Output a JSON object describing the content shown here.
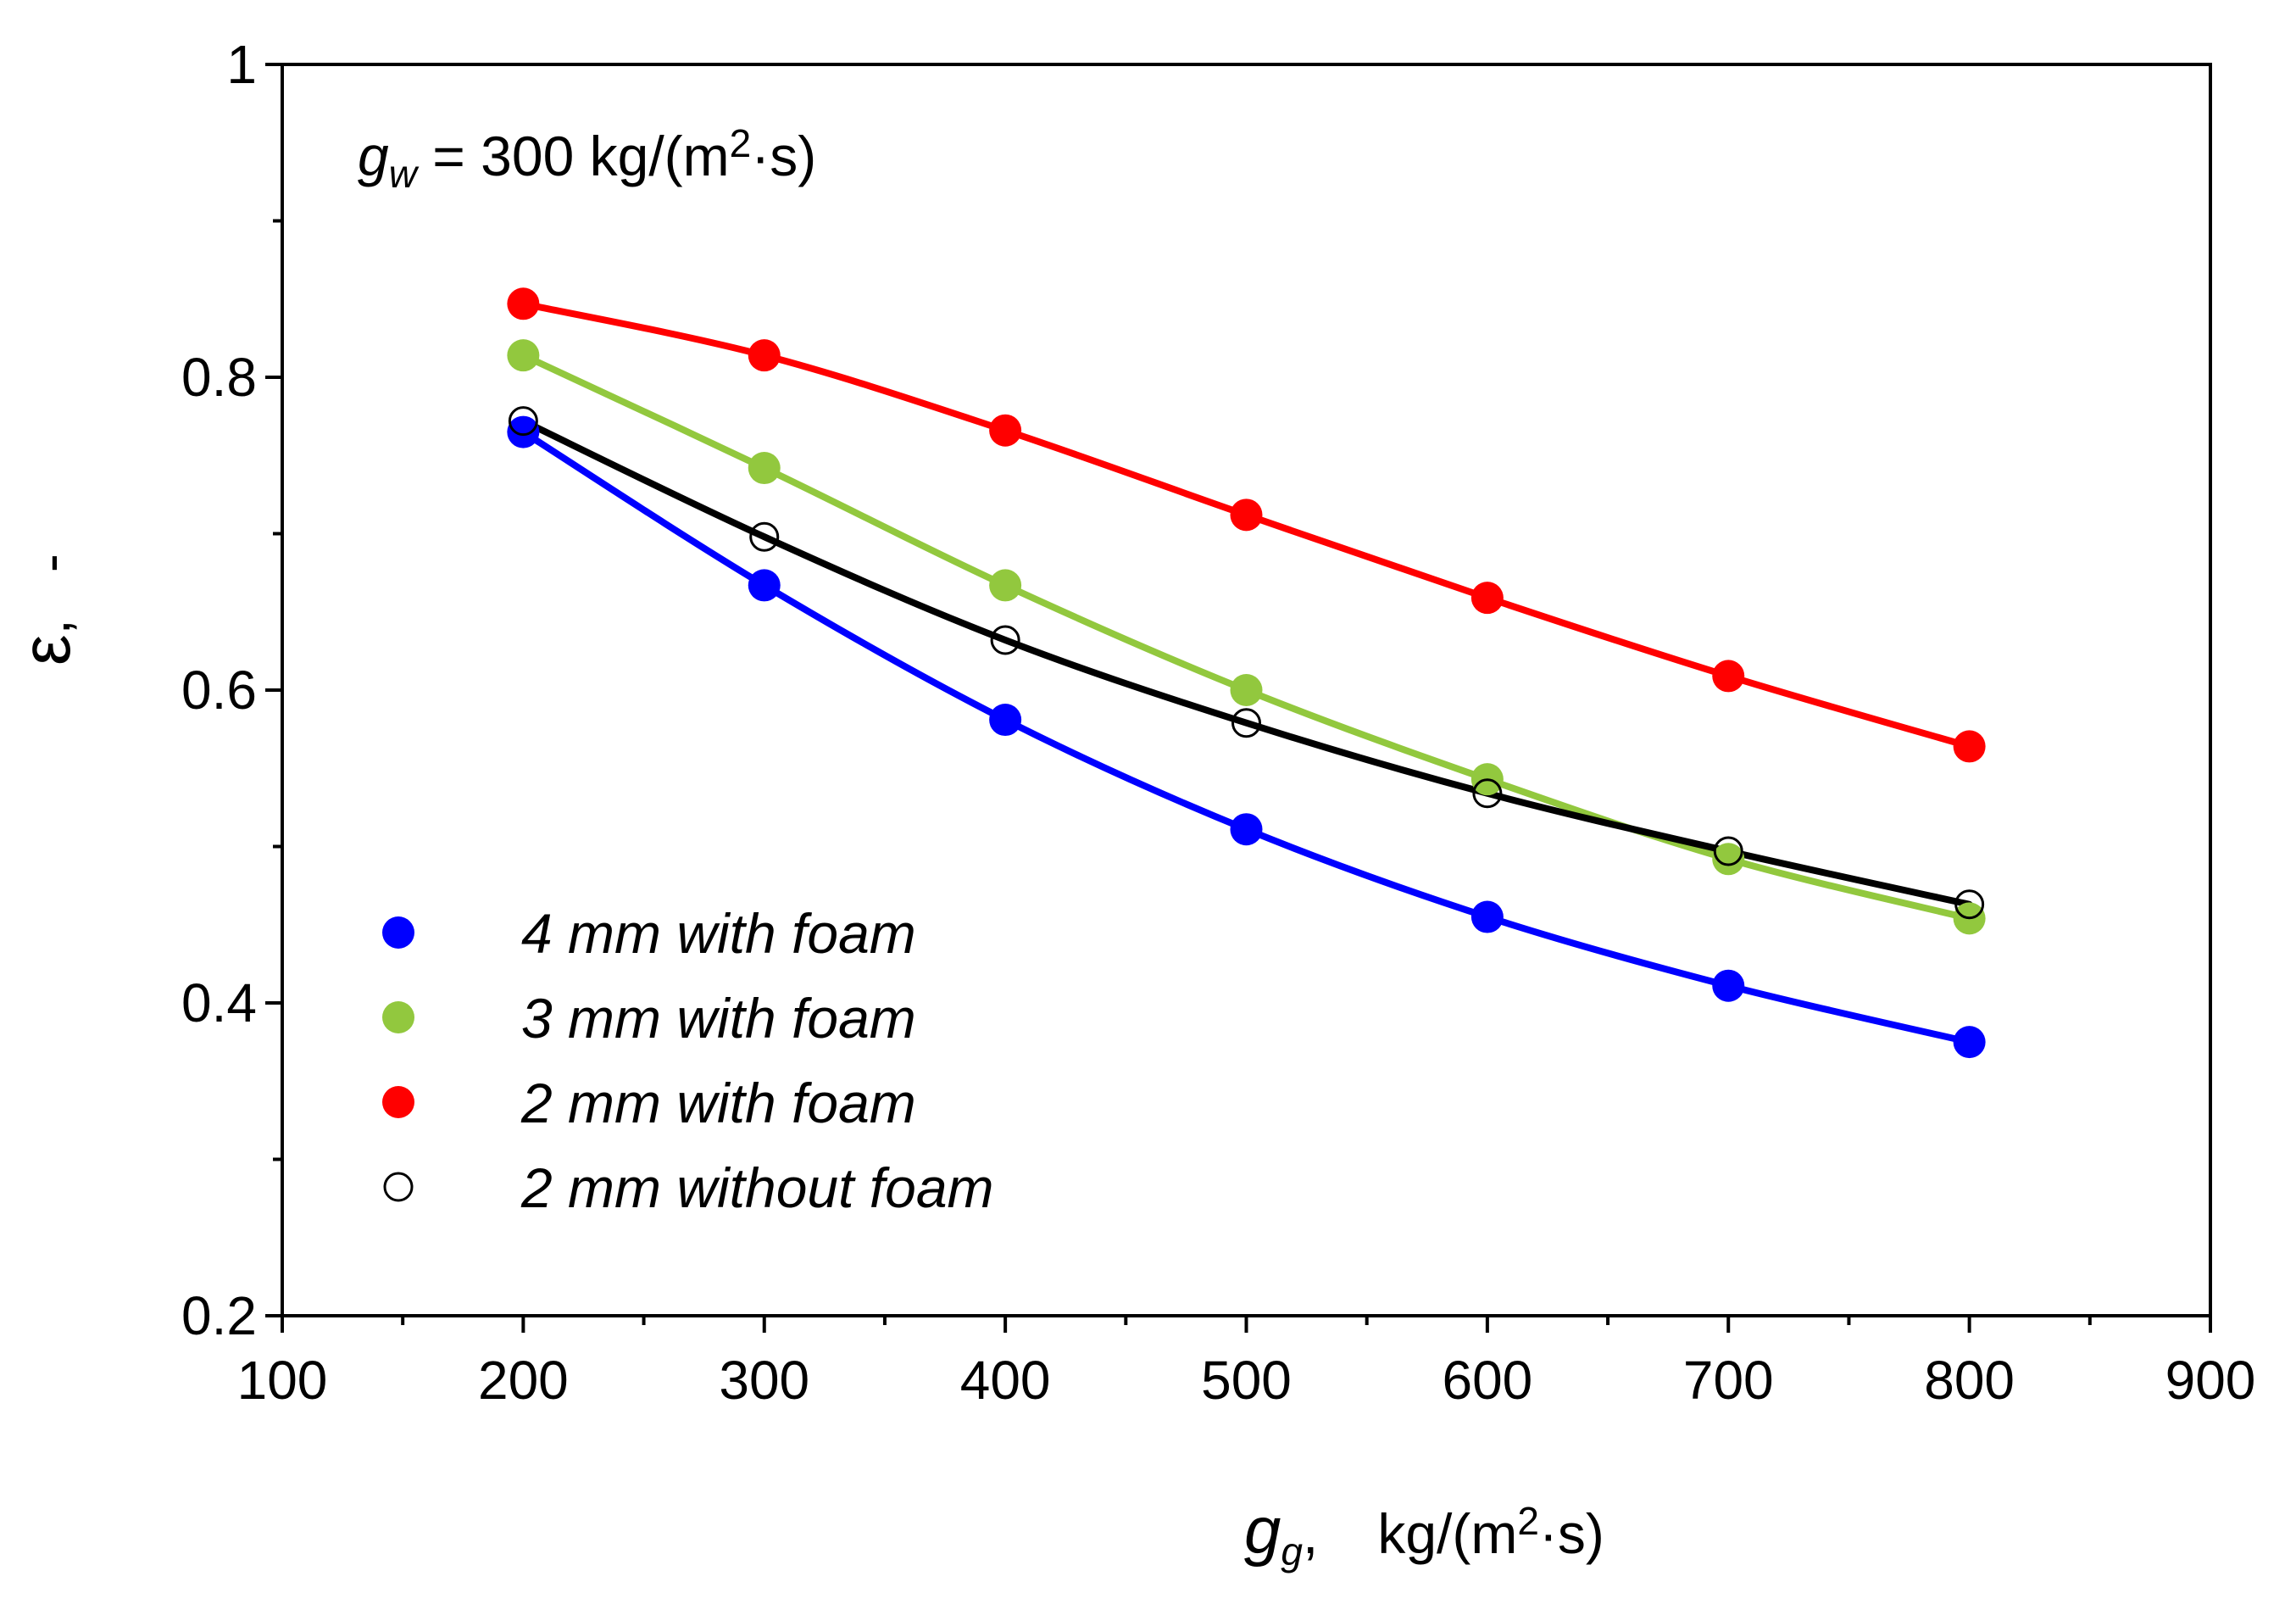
{
  "chart_data": {
    "type": "line",
    "title": "",
    "annotation": {
      "symbol": "g",
      "subscript": "w",
      "text": " = 300 kg/(m",
      "superscript": "2",
      "text_end": "·s)"
    },
    "xlabel": {
      "symbol": "g",
      "subscript": "g",
      "separator": ",",
      "units": "kg/(m",
      "superscript": "2",
      "units_end": "·s)"
    },
    "ylabel": {
      "symbol": "ε",
      "separator": ",",
      "units": "-"
    },
    "xlim": [
      100,
      900
    ],
    "ylim": [
      0.2,
      1.0
    ],
    "xticks": [
      100,
      200,
      300,
      400,
      500,
      600,
      700,
      800,
      900
    ],
    "xtick_labels": [
      "100",
      "200",
      "300",
      "400",
      "500",
      "600",
      "700",
      "800",
      "900"
    ],
    "yticks": [
      0.2,
      0.4,
      0.6,
      0.8,
      1.0
    ],
    "ytick_labels": [
      "0.2",
      "0.4",
      "0.6",
      "0.8",
      "1"
    ],
    "grid": false,
    "legend_position": "bottom-left",
    "x": [
      200,
      300,
      400,
      500,
      600,
      700,
      800
    ],
    "series": [
      {
        "name": "4 mm with foam",
        "color": "#0000ff",
        "marker": "filled-circle",
        "values": [
          0.765,
          0.667,
          0.581,
          0.511,
          0.455,
          0.411,
          0.375
        ]
      },
      {
        "name": "3 mm with foam",
        "color": "#92c83e",
        "marker": "filled-circle",
        "values": [
          0.814,
          0.742,
          0.667,
          0.6,
          0.543,
          0.492,
          0.454
        ]
      },
      {
        "name": "2 mm with foam",
        "color": "#ff0000",
        "marker": "filled-circle",
        "values": [
          0.847,
          0.814,
          0.766,
          0.712,
          0.659,
          0.609,
          0.564
        ]
      },
      {
        "name": "2 mm without foam",
        "color": "#000000",
        "marker": "open-circle",
        "values": [
          0.772,
          0.698,
          0.632,
          0.579,
          0.534,
          0.497,
          0.463
        ]
      }
    ]
  }
}
